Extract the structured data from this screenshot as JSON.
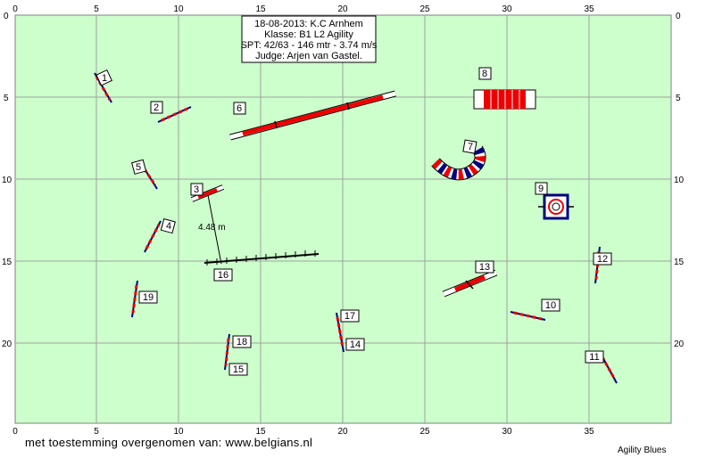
{
  "header": {
    "line1": "18-08-2013: K.C Arnhem",
    "line2": "Klasse: B1 L2 Agility",
    "line3": "SPT: 42/63 - 146 mtr - 3.74 m/s",
    "line4": "Judge: Arjen van Gastel."
  },
  "axes": {
    "x_ticks": [
      "0",
      "5",
      "10",
      "15",
      "20",
      "25",
      "30",
      "35"
    ],
    "y_ticks": [
      "0",
      "5",
      "10",
      "15",
      "20"
    ]
  },
  "colors": {
    "field": "#ccffcc",
    "grid": "#a0a0a0",
    "pole_red": "#ee0000",
    "wing_blue": "#000080"
  },
  "obstacles": {
    "n1": "1",
    "n2": "2",
    "n3": "3",
    "n4": "4",
    "n5": "5",
    "n6": "6",
    "n7": "7",
    "n8": "8",
    "n9": "9",
    "n10": "10",
    "n11": "11",
    "n12": "12",
    "n13": "13",
    "n14": "14",
    "n15": "15",
    "n16": "16",
    "n17": "17",
    "n18": "18",
    "n19": "19"
  },
  "measure_label": "4.48 m",
  "footer": {
    "left": "met toestemming overgenomen van: www.belgians.nl",
    "right": "Agility Blues"
  }
}
